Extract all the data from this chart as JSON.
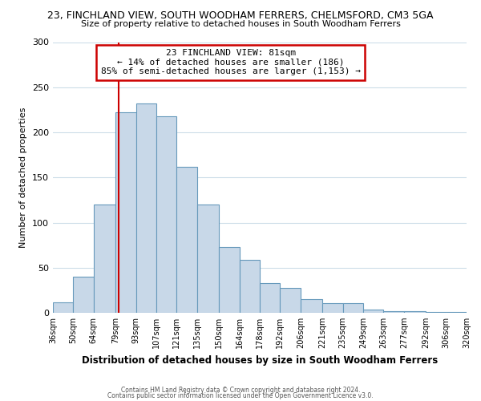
{
  "title1": "23, FINCHLAND VIEW, SOUTH WOODHAM FERRERS, CHELMSFORD, CM3 5GA",
  "title2": "Size of property relative to detached houses in South Woodham Ferrers",
  "xlabel": "Distribution of detached houses by size in South Woodham Ferrers",
  "ylabel": "Number of detached properties",
  "footer1": "Contains HM Land Registry data © Crown copyright and database right 2024.",
  "footer2": "Contains public sector information licensed under the Open Government Licence v3.0.",
  "bar_edges": [
    36,
    50,
    64,
    79,
    93,
    107,
    121,
    135,
    150,
    164,
    178,
    192,
    206,
    221,
    235,
    249,
    263,
    277,
    292,
    306,
    320
  ],
  "bar_heights": [
    12,
    40,
    120,
    222,
    232,
    218,
    162,
    120,
    73,
    59,
    33,
    28,
    15,
    11,
    11,
    4,
    2,
    2,
    1,
    1
  ],
  "bar_color": "#c8d8e8",
  "bar_edgecolor": "#6699bb",
  "vline_x": 81,
  "vline_color": "#cc0000",
  "annotation_title": "23 FINCHLAND VIEW: 81sqm",
  "annotation_line1": "← 14% of detached houses are smaller (186)",
  "annotation_line2": "85% of semi-detached houses are larger (1,153) →",
  "box_edgecolor": "#cc0000",
  "ylim": [
    0,
    300
  ],
  "yticks": [
    0,
    50,
    100,
    150,
    200,
    250,
    300
  ],
  "xtick_labels": [
    "36sqm",
    "50sqm",
    "64sqm",
    "79sqm",
    "93sqm",
    "107sqm",
    "121sqm",
    "135sqm",
    "150sqm",
    "164sqm",
    "178sqm",
    "192sqm",
    "206sqm",
    "221sqm",
    "235sqm",
    "249sqm",
    "263sqm",
    "277sqm",
    "292sqm",
    "306sqm",
    "320sqm"
  ],
  "background_color": "#ffffff",
  "grid_color": "#ccdde8",
  "title1_fontsize": 9,
  "title2_fontsize": 8,
  "ylabel_fontsize": 8,
  "xlabel_fontsize": 8.5,
  "footer_fontsize": 5.5,
  "annot_fontsize": 8
}
